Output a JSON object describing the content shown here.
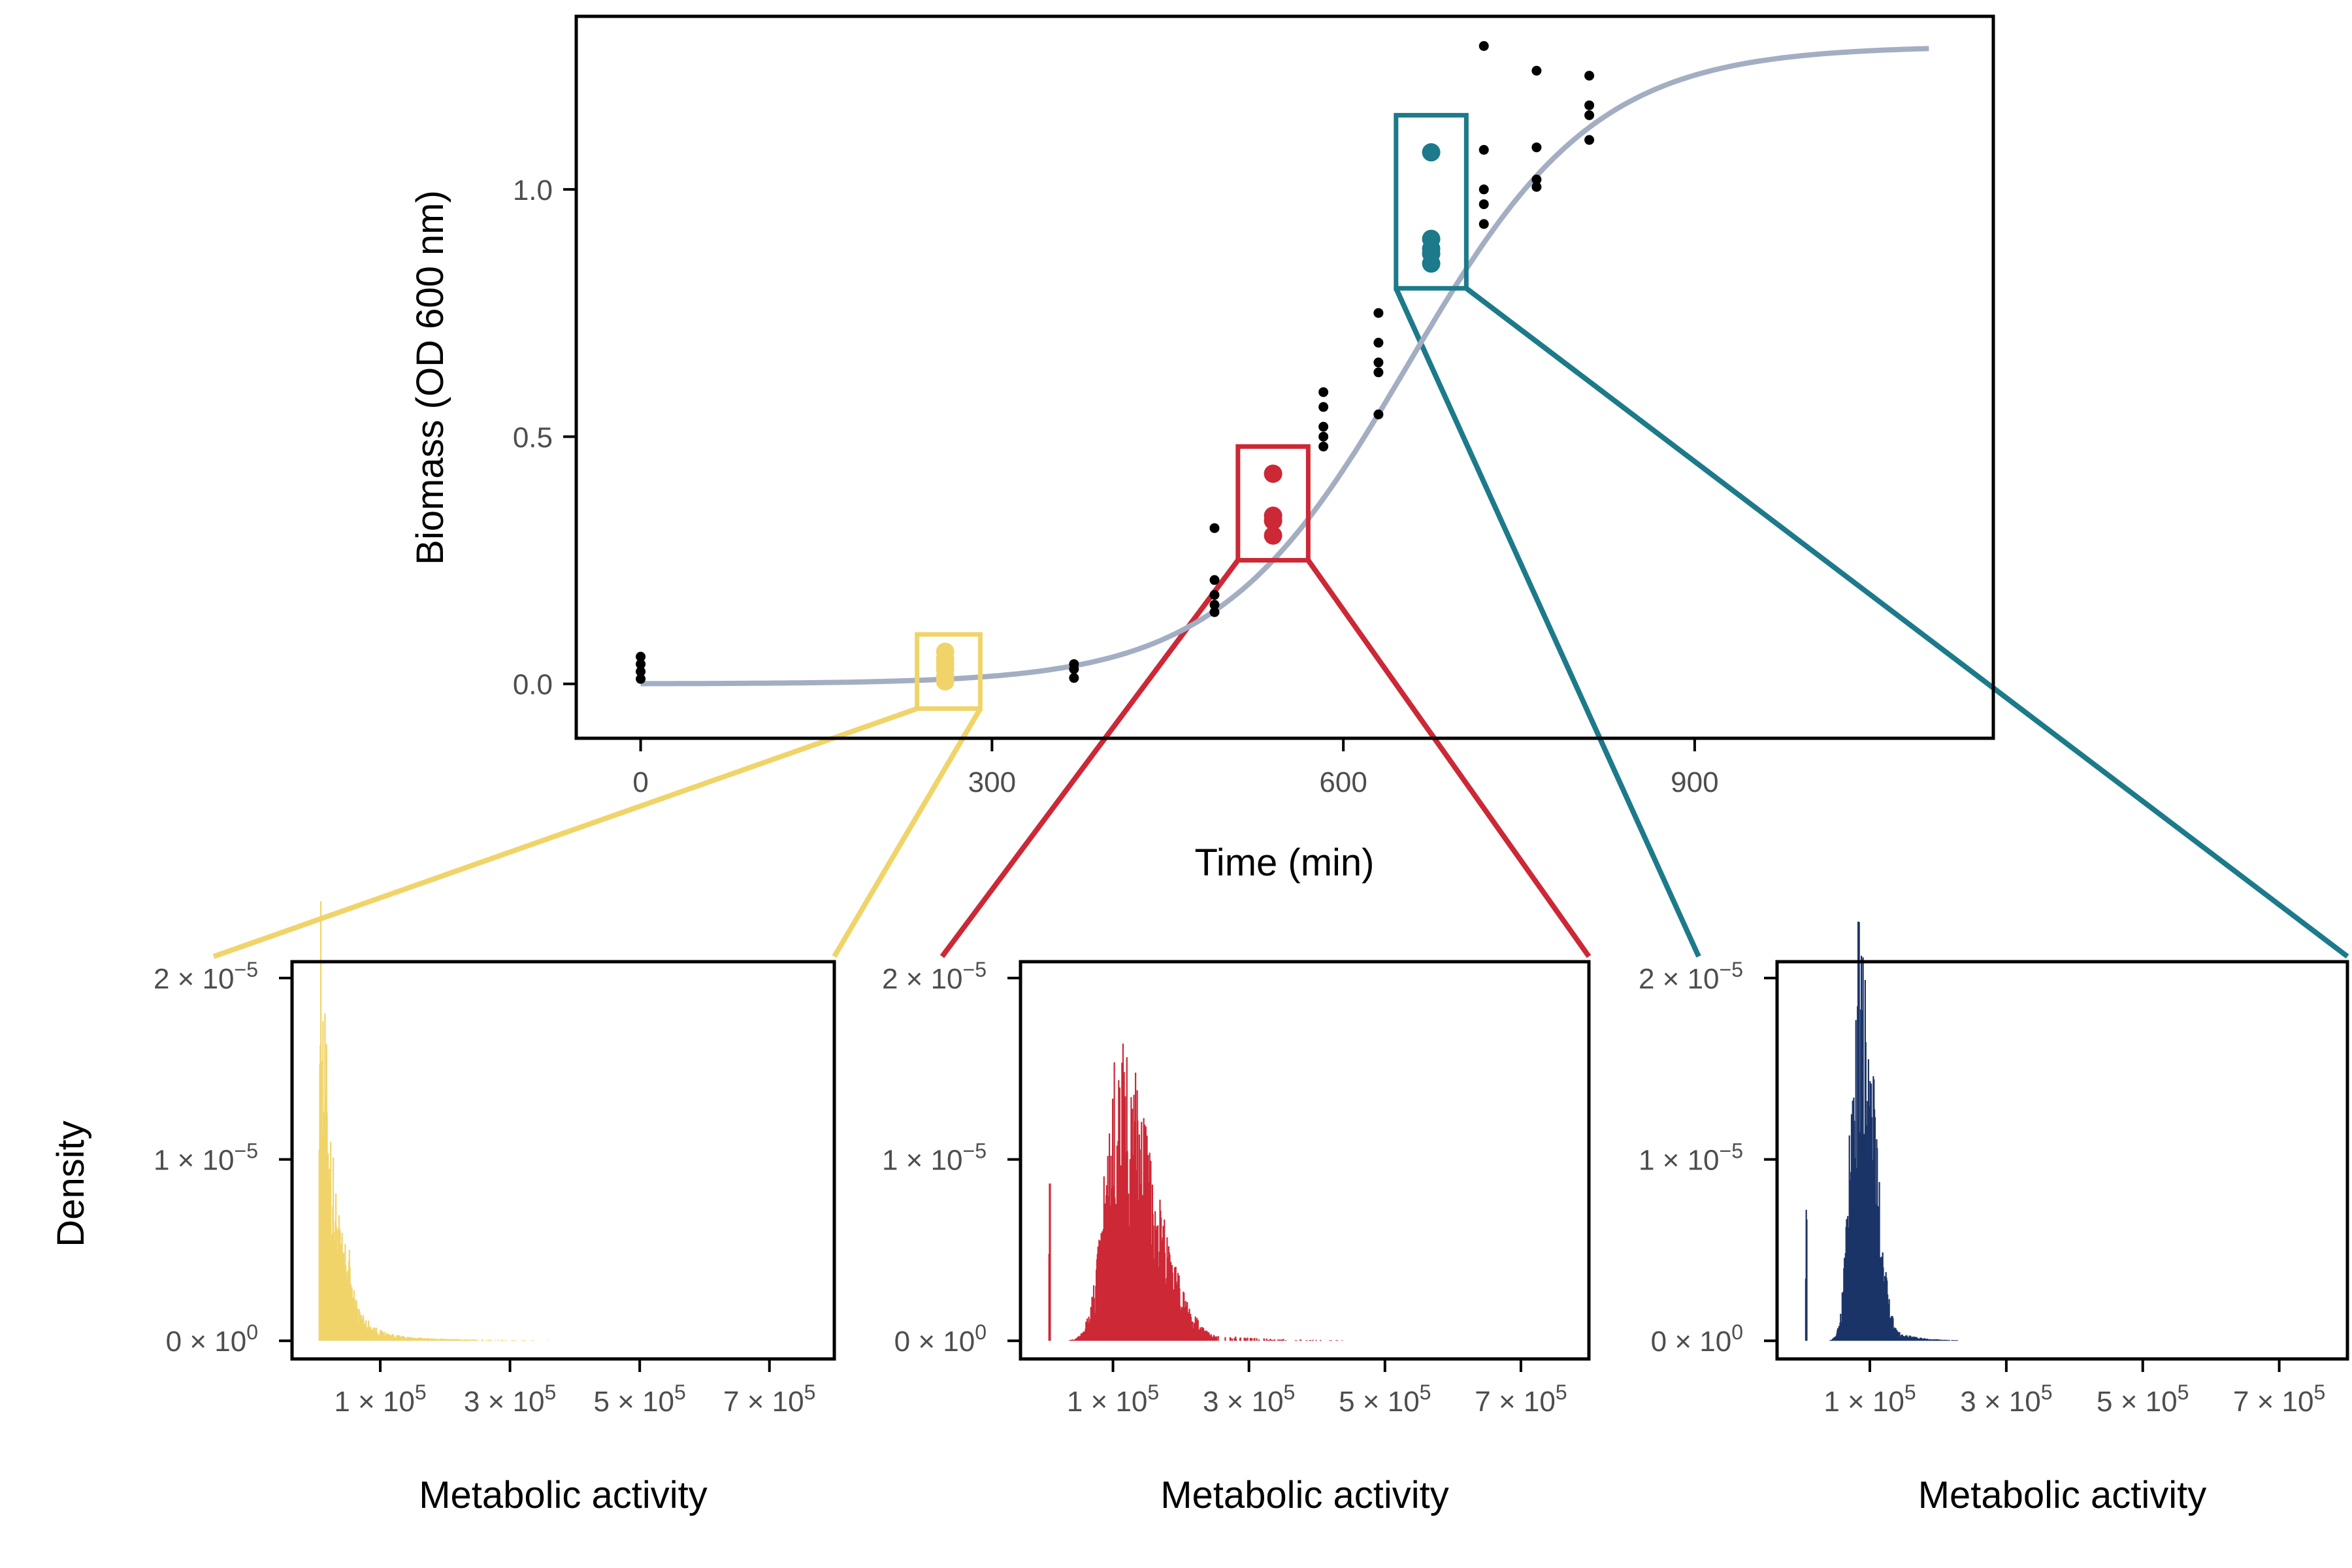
{
  "colors": {
    "early": "#f0d46a",
    "mid": "#cc2836",
    "late": "#1c7a8a",
    "late_hist": "#1b3468",
    "fit": "#a3aec3",
    "points": "#000000"
  },
  "chart_data": [
    {
      "type": "scatter",
      "title": "",
      "xlabel": "Time (min)",
      "ylabel": "Biomass (OD 600 nm)",
      "xlim": [
        -55,
        1155
      ],
      "ylim": [
        -0.11,
        1.35
      ],
      "xticks": [
        {
          "value": 0,
          "label": "0"
        },
        {
          "value": 300,
          "label": "300"
        },
        {
          "value": 600,
          "label": "600"
        },
        {
          "value": 900,
          "label": "900"
        }
      ],
      "yticks": [
        {
          "value": 0.0,
          "label": "0.0"
        },
        {
          "value": 0.5,
          "label": "0.5"
        },
        {
          "value": 1.0,
          "label": "1.0"
        }
      ],
      "points": [
        {
          "x": 0,
          "y": 0.055
        },
        {
          "x": 0,
          "y": 0.04
        },
        {
          "x": 0,
          "y": 0.025
        },
        {
          "x": 0,
          "y": 0.01
        },
        {
          "x": 370,
          "y": 0.04
        },
        {
          "x": 370,
          "y": 0.03
        },
        {
          "x": 370,
          "y": 0.012
        },
        {
          "x": 490,
          "y": 0.315
        },
        {
          "x": 490,
          "y": 0.21
        },
        {
          "x": 490,
          "y": 0.18
        },
        {
          "x": 490,
          "y": 0.16
        },
        {
          "x": 490,
          "y": 0.145
        },
        {
          "x": 583,
          "y": 0.59
        },
        {
          "x": 583,
          "y": 0.56
        },
        {
          "x": 583,
          "y": 0.52
        },
        {
          "x": 583,
          "y": 0.5
        },
        {
          "x": 583,
          "y": 0.48
        },
        {
          "x": 630,
          "y": 0.75
        },
        {
          "x": 630,
          "y": 0.69
        },
        {
          "x": 630,
          "y": 0.65
        },
        {
          "x": 630,
          "y": 0.63
        },
        {
          "x": 630,
          "y": 0.545
        },
        {
          "x": 720,
          "y": 1.29
        },
        {
          "x": 720,
          "y": 1.08
        },
        {
          "x": 720,
          "y": 1.0
        },
        {
          "x": 720,
          "y": 0.97
        },
        {
          "x": 720,
          "y": 0.93
        },
        {
          "x": 765,
          "y": 1.24
        },
        {
          "x": 765,
          "y": 1.085
        },
        {
          "x": 765,
          "y": 1.02
        },
        {
          "x": 765,
          "y": 1.005
        },
        {
          "x": 810,
          "y": 1.23
        },
        {
          "x": 810,
          "y": 1.17
        },
        {
          "x": 810,
          "y": 1.15
        },
        {
          "x": 810,
          "y": 1.1
        }
      ],
      "highlighted_points": [
        {
          "group": "early",
          "x": 260,
          "y": 0.065
        },
        {
          "group": "early",
          "x": 260,
          "y": 0.05
        },
        {
          "group": "early",
          "x": 260,
          "y": 0.04
        },
        {
          "group": "early",
          "x": 260,
          "y": 0.03
        },
        {
          "group": "early",
          "x": 260,
          "y": 0.015
        },
        {
          "group": "early",
          "x": 260,
          "y": 0.005
        },
        {
          "group": "mid",
          "x": 540,
          "y": 0.425
        },
        {
          "group": "mid",
          "x": 540,
          "y": 0.34
        },
        {
          "group": "mid",
          "x": 540,
          "y": 0.33
        },
        {
          "group": "mid",
          "x": 540,
          "y": 0.3
        },
        {
          "group": "late",
          "x": 675,
          "y": 1.075
        },
        {
          "group": "late",
          "x": 675,
          "y": 0.9
        },
        {
          "group": "late",
          "x": 675,
          "y": 0.88
        },
        {
          "group": "late",
          "x": 675,
          "y": 0.87
        },
        {
          "group": "late",
          "x": 675,
          "y": 0.85
        }
      ],
      "fit_curve": {
        "model": "logistic",
        "K": 1.29,
        "r": 0.0124,
        "t0": 655,
        "x_range": [
          0,
          1100
        ]
      },
      "highlight_boxes": [
        {
          "group": "early",
          "x": [
            236,
            290
          ],
          "y": [
            -0.05,
            0.1
          ]
        },
        {
          "group": "mid",
          "x": [
            510,
            570
          ],
          "y": [
            0.25,
            0.48
          ]
        },
        {
          "group": "late",
          "x": [
            645,
            705
          ],
          "y": [
            0.8,
            1.15
          ]
        }
      ],
      "grid": false
    },
    {
      "type": "histogram",
      "group": "early",
      "xlabel": "Metabolic activity",
      "ylabel": "Density",
      "xlim": [
        -36000,
        800000
      ],
      "ylim": [
        -1e-06,
        2.09e-05
      ],
      "xticks": [
        {
          "value": 100000,
          "label": "1 × 10",
          "exp": "5"
        },
        {
          "value": 300000,
          "label": "3 × 10",
          "exp": "5"
        },
        {
          "value": 500000,
          "label": "5 × 10",
          "exp": "5"
        },
        {
          "value": 700000,
          "label": "7 × 10",
          "exp": "5"
        }
      ],
      "yticks": [
        {
          "value": 0,
          "label": "0 × 10",
          "exp": "0"
        },
        {
          "value": 1e-05,
          "label": "1 × 10",
          "exp": "−5"
        },
        {
          "value": 2e-05,
          "label": "2 × 10",
          "exp": "−5"
        }
      ],
      "shape": {
        "kind": "decay",
        "start": 6000,
        "peak_density": 1.85e-05,
        "decay_scale": 22000,
        "floor": 4e-07,
        "end": 560000
      }
    },
    {
      "type": "histogram",
      "group": "mid",
      "xlabel": "Metabolic activity",
      "ylabel": "",
      "xlim": [
        -36000,
        800000
      ],
      "ylim": [
        -1e-06,
        2.09e-05
      ],
      "xticks": [
        {
          "value": 100000,
          "label": "1 × 10",
          "exp": "5"
        },
        {
          "value": 300000,
          "label": "3 × 10",
          "exp": "5"
        },
        {
          "value": 500000,
          "label": "5 × 10",
          "exp": "5"
        },
        {
          "value": 700000,
          "label": "7 × 10",
          "exp": "5"
        }
      ],
      "yticks": [
        {
          "value": 0,
          "label": "0 × 10",
          "exp": "0"
        },
        {
          "value": 1e-05,
          "label": "1 × 10",
          "exp": "−5"
        },
        {
          "value": 2e-05,
          "label": "2 × 10",
          "exp": "−5"
        }
      ],
      "shape": {
        "kind": "skewed",
        "start": 6000,
        "mode": 110000,
        "peak_density": 1.15e-05,
        "rise_width": 30000,
        "tail_scale": 50000,
        "spike_density": 8.5e-06,
        "end": 600000
      }
    },
    {
      "type": "histogram",
      "group": "late",
      "xlabel": "Metabolic activity",
      "ylabel": "",
      "xlim": [
        -36000,
        800000
      ],
      "ylim": [
        -1e-06,
        2.09e-05
      ],
      "xticks": [
        {
          "value": 100000,
          "label": "1 × 10",
          "exp": "5"
        },
        {
          "value": 300000,
          "label": "3 × 10",
          "exp": "5"
        },
        {
          "value": 500000,
          "label": "5 × 10",
          "exp": "5"
        },
        {
          "value": 700000,
          "label": "7 × 10",
          "exp": "5"
        }
      ],
      "yticks": [
        {
          "value": 0,
          "label": "0 × 10",
          "exp": "0"
        },
        {
          "value": 1e-05,
          "label": "1 × 10",
          "exp": "−5"
        },
        {
          "value": 2e-05,
          "label": "2 × 10",
          "exp": "−5"
        }
      ],
      "shape": {
        "kind": "skewed",
        "start": 6000,
        "mode": 85000,
        "peak_density": 1.75e-05,
        "rise_width": 17000,
        "tail_scale": 20000,
        "spike_density": 6e-06,
        "end": 600000
      }
    }
  ]
}
